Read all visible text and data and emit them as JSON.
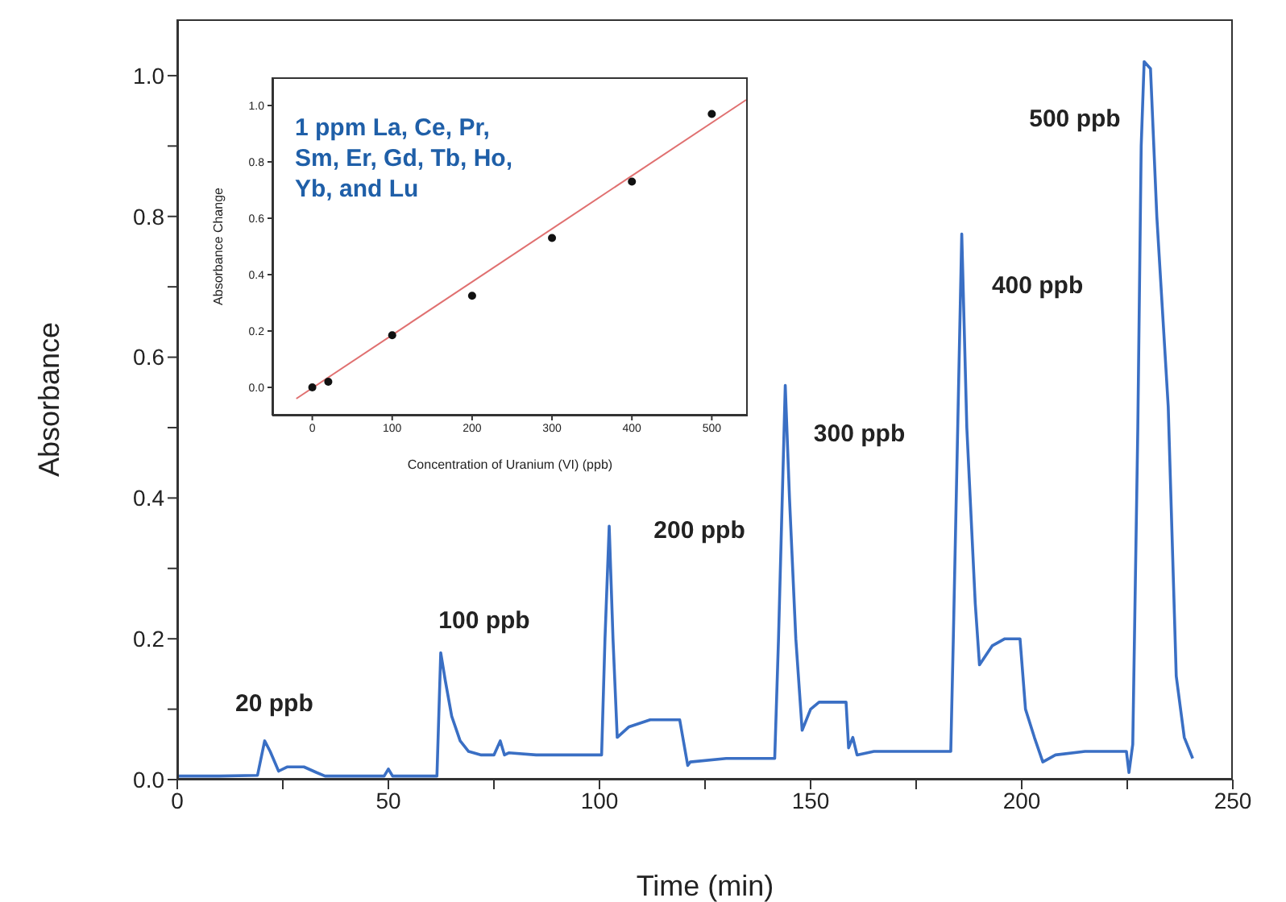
{
  "chart_data": [
    {
      "type": "line",
      "xlabel": "Time (min)",
      "ylabel": "Absorbance",
      "xlim": [
        0,
        250
      ],
      "ylim": [
        0,
        1.08
      ],
      "xticks": [
        0,
        {
          "value": 25,
          "label": null
        },
        50,
        {
          "value": 75,
          "label": null
        },
        100,
        {
          "value": 125,
          "label": null
        },
        150,
        {
          "value": 175,
          "label": null
        },
        200,
        {
          "value": 225,
          "label": null
        },
        250
      ],
      "yticks": [
        {
          "value": 0,
          "label": "0.0"
        },
        {
          "value": 0.1,
          "label": null
        },
        {
          "value": 0.2,
          "label": "0.2"
        },
        {
          "value": 0.3,
          "label": null
        },
        {
          "value": 0.4,
          "label": "0.4"
        },
        {
          "value": 0.5,
          "label": null
        },
        {
          "value": 0.6,
          "label": "0.6"
        },
        {
          "value": 0.7,
          "label": null
        },
        {
          "value": 0.8,
          "label": "0.8"
        },
        {
          "value": 0.9,
          "label": null
        },
        {
          "value": 1.0,
          "label": "1.0"
        }
      ],
      "grid": false,
      "legend": false,
      "series": [
        {
          "color": "#3a6fc4",
          "x": [
            0,
            10,
            19,
            20.7,
            22,
            24,
            26,
            30,
            33,
            35,
            45,
            49,
            50,
            51,
            60,
            61.5,
            62.4,
            63.5,
            65,
            67,
            69,
            72,
            75,
            76.5,
            77.5,
            78.5,
            85,
            95,
            100.5,
            101.3,
            102.3,
            103.2,
            104.2,
            107,
            112,
            119,
            120.9,
            121.5,
            130,
            141.5,
            142.4,
            144,
            145,
            146.5,
            148,
            150,
            152,
            158.4,
            159,
            160,
            161,
            165,
            175,
            183.2,
            183.8,
            185.8,
            187,
            189,
            190,
            193,
            196,
            199.6,
            200.9,
            203,
            205,
            208,
            215,
            224.8,
            225.4,
            226.3,
            227.5,
            228.3,
            229,
            230.5,
            232,
            234.7,
            236.6,
            238.5,
            240.5
          ],
          "values": [
            0.005,
            0.005,
            0.006,
            0.055,
            0.04,
            0.012,
            0.018,
            0.018,
            0.01,
            0.005,
            0.005,
            0.005,
            0.015,
            0.005,
            0.005,
            0.005,
            0.18,
            0.14,
            0.09,
            0.055,
            0.04,
            0.035,
            0.035,
            0.055,
            0.035,
            0.038,
            0.035,
            0.035,
            0.035,
            0.2,
            0.36,
            0.2,
            0.06,
            0.075,
            0.085,
            0.085,
            0.02,
            0.025,
            0.03,
            0.03,
            0.2,
            0.56,
            0.4,
            0.2,
            0.07,
            0.1,
            0.11,
            0.11,
            0.045,
            0.06,
            0.035,
            0.04,
            0.04,
            0.04,
            0.2,
            0.775,
            0.5,
            0.25,
            0.163,
            0.19,
            0.2,
            0.2,
            0.1,
            0.06,
            0.025,
            0.035,
            0.04,
            0.04,
            0.01,
            0.05,
            0.5,
            0.9,
            1.02,
            1.01,
            0.8,
            0.53,
            0.147,
            0.06,
            0.03
          ]
        }
      ],
      "annotations": [
        {
          "text": "20 ppb",
          "x": 20.7,
          "y": 0.055
        },
        {
          "text": "100 ppb",
          "x": 62.4,
          "y": 0.18
        },
        {
          "text": "200 ppb",
          "x": 102.3,
          "y": 0.36
        },
        {
          "text": "300 ppb",
          "x": 144,
          "y": 0.56
        },
        {
          "text": "400 ppb",
          "x": 185.8,
          "y": 0.775
        },
        {
          "text": "500 ppb",
          "x": 229,
          "y": 1.02
        }
      ]
    },
    {
      "type": "scatter",
      "xlabel": "Concentration of Uranium (VI) (ppb)",
      "ylabel": "Absorbance Change",
      "xlim": [
        -50,
        545
      ],
      "ylim": [
        -0.1,
        1.1
      ],
      "xticks": [
        0,
        100,
        200,
        300,
        400,
        500
      ],
      "yticks": [
        {
          "value": 0,
          "label": "0.0"
        },
        {
          "value": 0.2,
          "label": "0.2"
        },
        {
          "value": 0.4,
          "label": "0.4"
        },
        {
          "value": 0.6,
          "label": "0.6"
        },
        {
          "value": 0.8,
          "label": "0.8"
        },
        {
          "value": 1.0,
          "label": "1.0"
        }
      ],
      "grid": false,
      "legend": false,
      "series": [
        {
          "marker": "circle",
          "color": "#111111",
          "x": [
            0,
            20,
            100,
            200,
            300,
            400,
            500
          ],
          "values": [
            0.0,
            0.02,
            0.185,
            0.325,
            0.53,
            0.73,
            0.97
          ]
        },
        {
          "type": "line",
          "color": "#e07070",
          "x": [
            -20,
            543
          ],
          "values": [
            -0.04,
            1.02
          ]
        }
      ],
      "annotations": [
        "1 ppm La, Ce, Pr, Sm, Er, Gd, Tb, Ho, Yb, and Lu"
      ]
    }
  ]
}
